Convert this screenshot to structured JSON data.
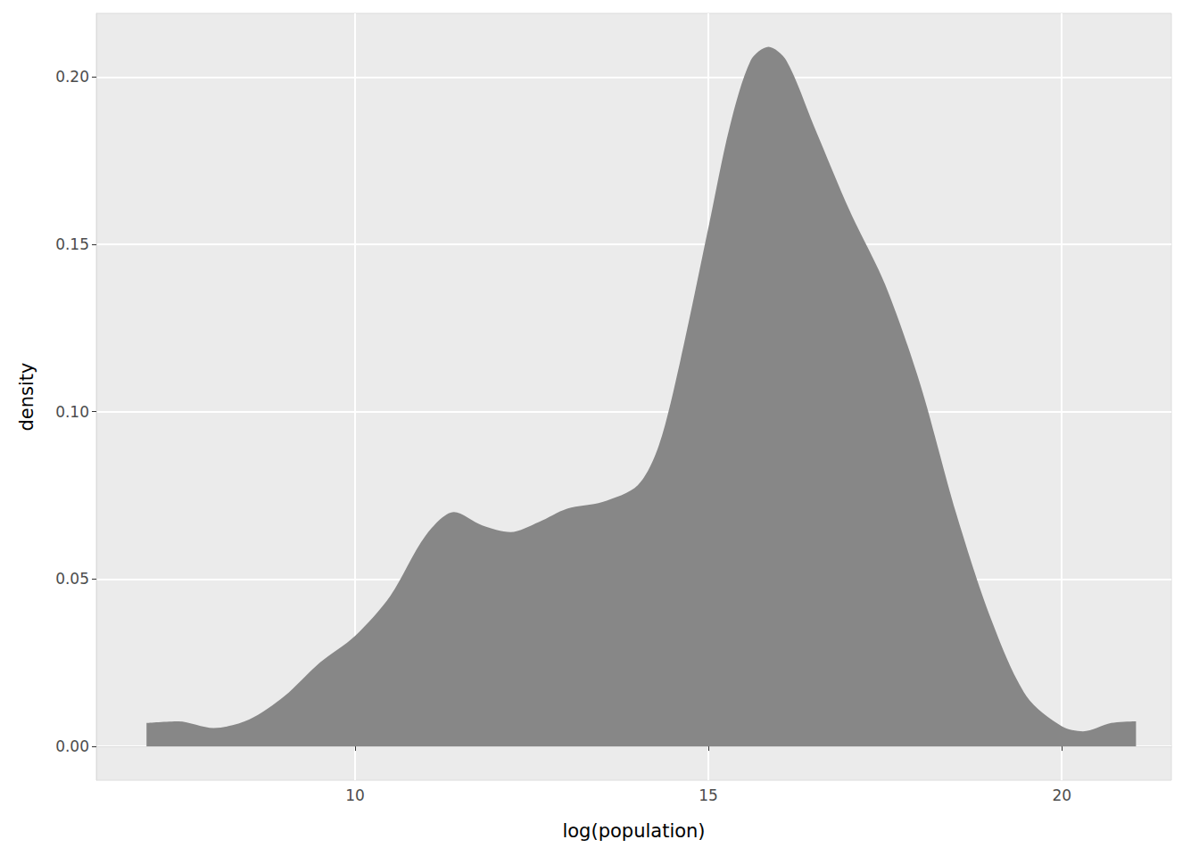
{
  "chart_data": {
    "type": "area",
    "x_label": "log(population)",
    "y_label": "density",
    "x": [
      7.05,
      7.5,
      8,
      8.5,
      9,
      9.5,
      10,
      10.5,
      11,
      11.4,
      11.8,
      12.2,
      12.6,
      13,
      13.5,
      14,
      14.3,
      14.6,
      15,
      15.3,
      15.6,
      15.85,
      16.1,
      16.5,
      17,
      17.5,
      18,
      18.5,
      19,
      19.5,
      20,
      20.3,
      20.7,
      21.05
    ],
    "values": [
      0.007,
      0.0075,
      0.0055,
      0.008,
      0.015,
      0.025,
      0.033,
      0.045,
      0.063,
      0.07,
      0.066,
      0.064,
      0.067,
      0.071,
      0.073,
      0.078,
      0.09,
      0.115,
      0.155,
      0.185,
      0.205,
      0.209,
      0.205,
      0.185,
      0.16,
      0.138,
      0.108,
      0.07,
      0.038,
      0.015,
      0.006,
      0.0045,
      0.007,
      0.0075
    ],
    "color": "#878787",
    "xlim": [
      6.34,
      21.55
    ],
    "ylim": [
      -0.0101,
      0.219
    ],
    "xticks": [
      10,
      15,
      20
    ],
    "yticks": [
      {
        "value": 0,
        "label": "0.00"
      },
      {
        "value": 0.05,
        "label": "0.05"
      },
      {
        "value": 0.1,
        "label": "0.10"
      },
      {
        "value": 0.15,
        "label": "0.15"
      },
      {
        "value": 0.2,
        "label": "0.20"
      }
    ],
    "grid": true
  }
}
